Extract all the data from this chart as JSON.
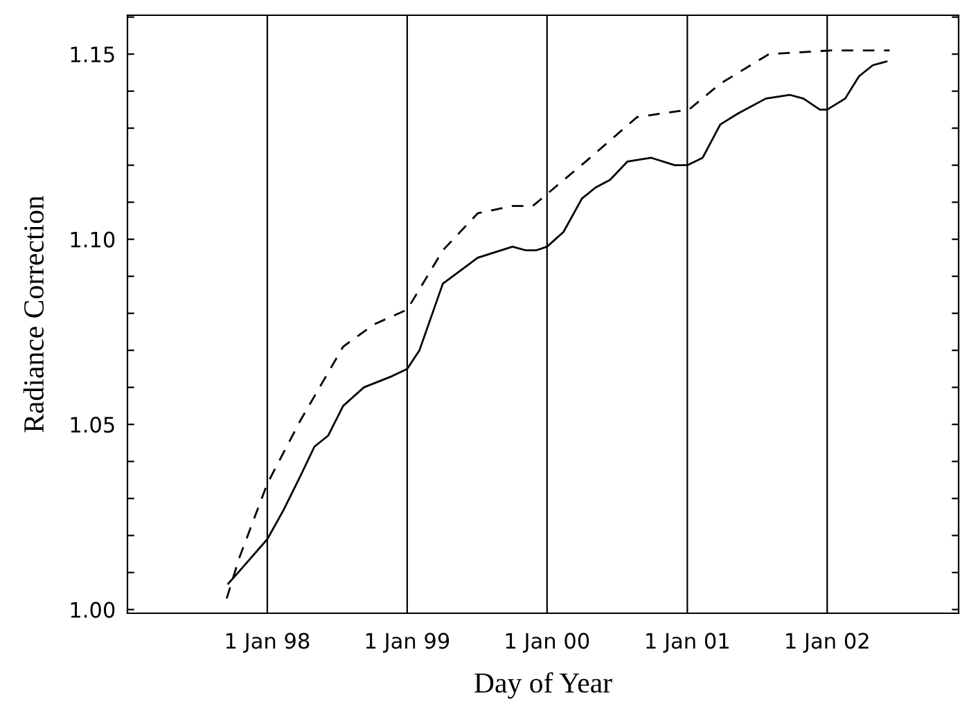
{
  "chart_data": {
    "type": "line",
    "xlabel": "Day of Year",
    "ylabel": "Radiance Correction",
    "xlim": [
      "1997-01-01",
      "2002-12-10"
    ],
    "xticks": [
      {
        "value": "1998-01-01",
        "label": "1 Jan 98"
      },
      {
        "value": "1999-01-01",
        "label": "1 Jan 99"
      },
      {
        "value": "2000-01-01",
        "label": "1 Jan 00"
      },
      {
        "value": "2001-01-01",
        "label": "1 Jan 01"
      },
      {
        "value": "2002-01-01",
        "label": "1 Jan 02"
      }
    ],
    "ylim": [
      0.999,
      1.1605
    ],
    "yticks": [
      {
        "value": 1.0,
        "label": "1.00"
      },
      {
        "value": 1.01,
        "label": null
      },
      {
        "value": 1.02,
        "label": null
      },
      {
        "value": 1.03,
        "label": null
      },
      {
        "value": 1.04,
        "label": null
      },
      {
        "value": 1.05,
        "label": "1.05"
      },
      {
        "value": 1.06,
        "label": null
      },
      {
        "value": 1.07,
        "label": null
      },
      {
        "value": 1.08,
        "label": null
      },
      {
        "value": 1.09,
        "label": null
      },
      {
        "value": 1.1,
        "label": "1.10"
      },
      {
        "value": 1.11,
        "label": null
      },
      {
        "value": 1.12,
        "label": null
      },
      {
        "value": 1.13,
        "label": null
      },
      {
        "value": 1.14,
        "label": null
      },
      {
        "value": 1.15,
        "label": "1.15"
      },
      {
        "value": 1.16,
        "label": null
      }
    ],
    "grid": "x",
    "marker": "none",
    "series": [
      {
        "color": "#000000",
        "line_style": "solid",
        "x": [
          "1997-09-21",
          "1997-10-17",
          "1998-01-01",
          "1998-02-13",
          "1998-03-28",
          "1998-05-04",
          "1998-06-09",
          "1998-07-18",
          "1998-09-10",
          "1998-11-22",
          "1999-01-01",
          "1999-02-02",
          "1999-04-04",
          "1999-07-04",
          "1999-10-03",
          "1999-11-07",
          "1999-12-03",
          "2000-01-01",
          "2000-02-13",
          "2000-04-01",
          "2000-05-07",
          "2000-06-13",
          "2000-07-29",
          "2000-09-29",
          "2000-11-29",
          "2001-01-01",
          "2001-02-10",
          "2001-03-28",
          "2001-05-14",
          "2001-07-25",
          "2001-09-25",
          "2001-10-31",
          "2001-12-13",
          "2002-01-01",
          "2002-02-17",
          "2002-03-25",
          "2002-04-30",
          "2002-06-05"
        ],
        "values": [
          1.007,
          1.01,
          1.019,
          1.027,
          1.036,
          1.044,
          1.047,
          1.055,
          1.06,
          1.063,
          1.065,
          1.07,
          1.088,
          1.095,
          1.098,
          1.097,
          1.097,
          1.098,
          1.102,
          1.111,
          1.114,
          1.116,
          1.121,
          1.122,
          1.12,
          1.12,
          1.122,
          1.131,
          1.134,
          1.138,
          1.139,
          1.138,
          1.135,
          1.135,
          1.138,
          1.144,
          1.147,
          1.148
        ]
      },
      {
        "color": "#000000",
        "line_style": "dashed",
        "x": [
          "1997-09-17",
          "1997-10-20",
          "1998-01-01",
          "1998-03-28",
          "1998-07-18",
          "1998-10-06",
          "1999-01-01",
          "1999-04-04",
          "1999-07-04",
          "1999-10-03",
          "1999-11-25",
          "2000-04-11",
          "2000-08-23",
          "2001-01-05",
          "2001-03-28",
          "2001-08-02",
          "2002-01-12",
          "2002-06-13"
        ],
        "values": [
          1.003,
          1.014,
          1.034,
          1.051,
          1.071,
          1.077,
          1.081,
          1.097,
          1.107,
          1.109,
          1.109,
          1.121,
          1.133,
          1.135,
          1.142,
          1.15,
          1.151,
          1.151
        ]
      }
    ]
  }
}
